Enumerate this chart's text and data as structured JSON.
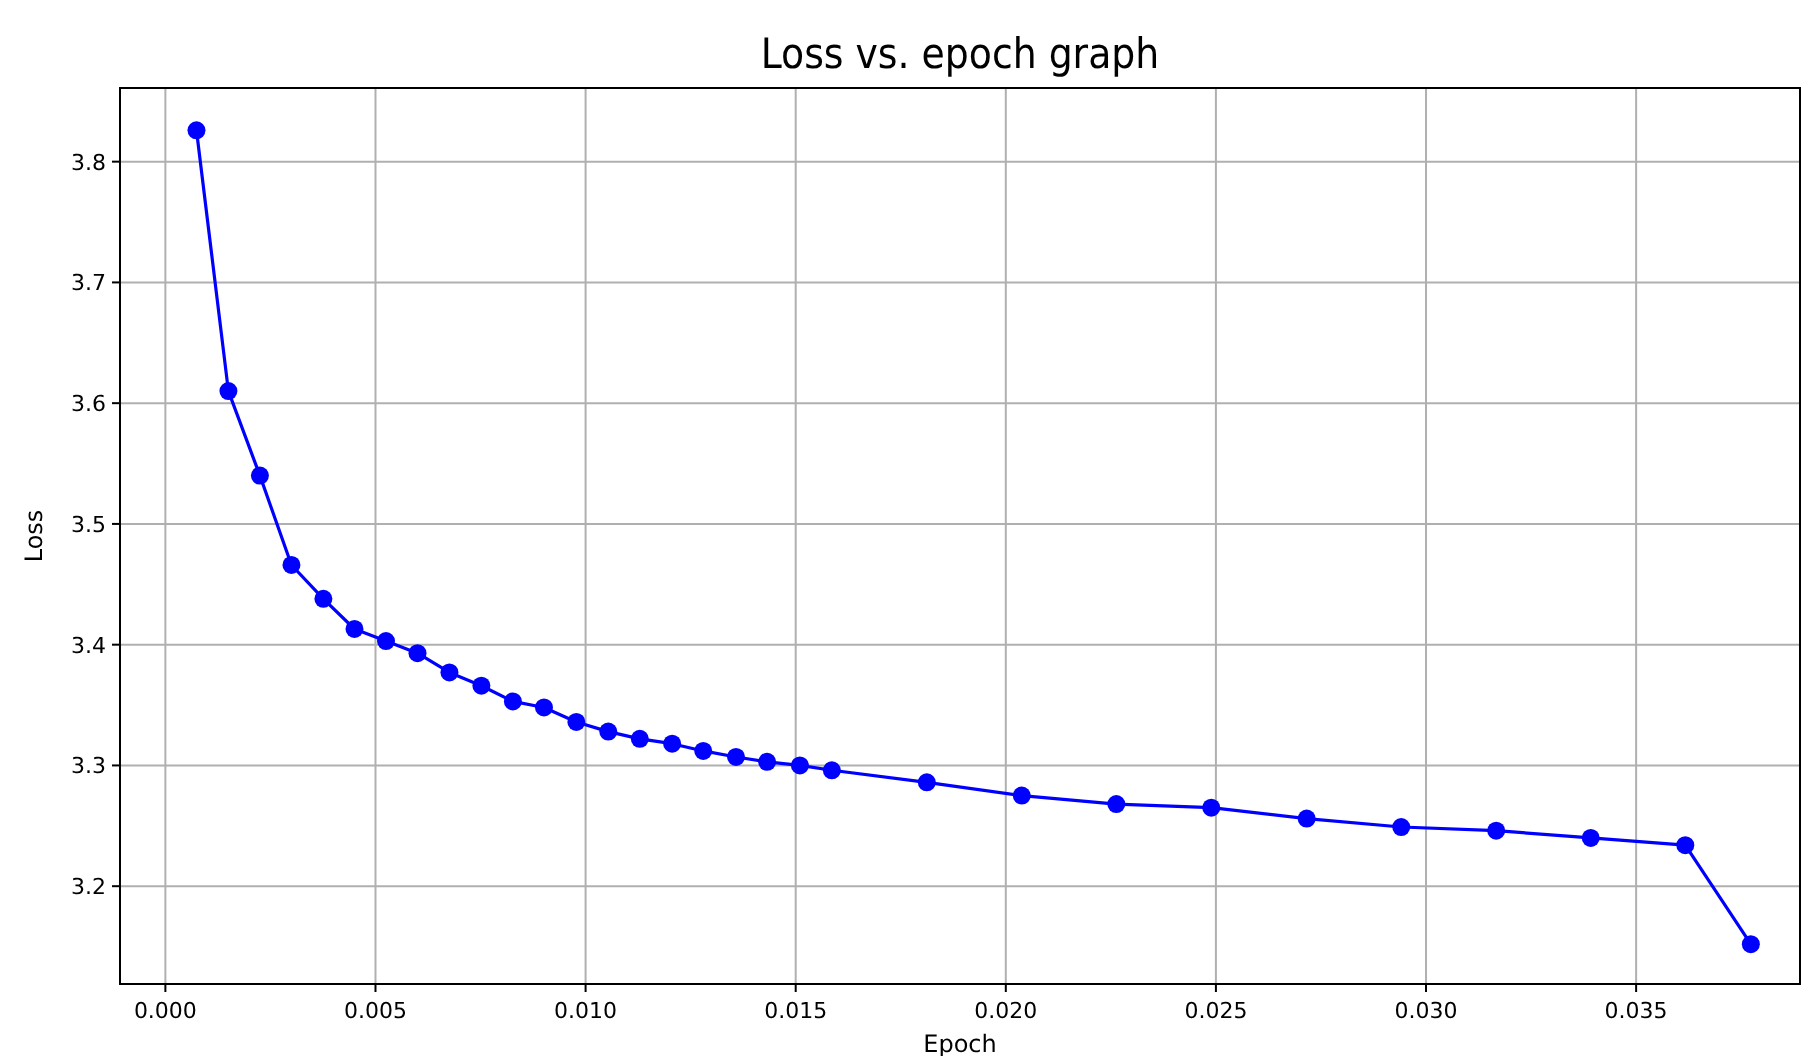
{
  "chart_data": {
    "type": "line",
    "title": "Loss vs. epoch graph",
    "xlabel": "Epoch",
    "ylabel": "Loss",
    "x": [
      0.00074,
      0.0015,
      0.00225,
      0.003,
      0.00376,
      0.0045,
      0.00525,
      0.006,
      0.00676,
      0.00752,
      0.00827,
      0.00901,
      0.00978,
      0.01054,
      0.01129,
      0.01206,
      0.0128,
      0.01358,
      0.01432,
      0.0151,
      0.01586,
      0.01812,
      0.02038,
      0.02263,
      0.02489,
      0.02716,
      0.02941,
      0.03167,
      0.03392,
      0.03617,
      0.03773
    ],
    "series": [
      {
        "color": "#0000ff",
        "values": [
          3.826,
          3.61,
          3.54,
          3.466,
          3.438,
          3.413,
          3.403,
          3.393,
          3.377,
          3.366,
          3.353,
          3.348,
          3.336,
          3.328,
          3.322,
          3.318,
          3.312,
          3.307,
          3.303,
          3.3,
          3.296,
          3.286,
          3.275,
          3.268,
          3.265,
          3.256,
          3.249,
          3.246,
          3.24,
          3.234,
          3.152
        ]
      }
    ],
    "xlim": [
      -0.00108,
      0.0389
    ],
    "ylim": [
      3.119,
      3.861
    ],
    "xticks": [
      {
        "value": 0,
        "label": "0.000"
      },
      {
        "value": 0.005,
        "label": "0.005"
      },
      {
        "value": 0.01,
        "label": "0.010"
      },
      {
        "value": 0.015,
        "label": "0.015"
      },
      {
        "value": 0.02,
        "label": "0.020"
      },
      {
        "value": 0.025,
        "label": "0.025"
      },
      {
        "value": 0.03,
        "label": "0.030"
      },
      {
        "value": 0.035,
        "label": "0.035"
      }
    ],
    "yticks": [
      3.2,
      3.3,
      3.4,
      3.5,
      3.6,
      3.7,
      3.8
    ],
    "grid": true,
    "marker": "circle",
    "line_style": "solid"
  }
}
